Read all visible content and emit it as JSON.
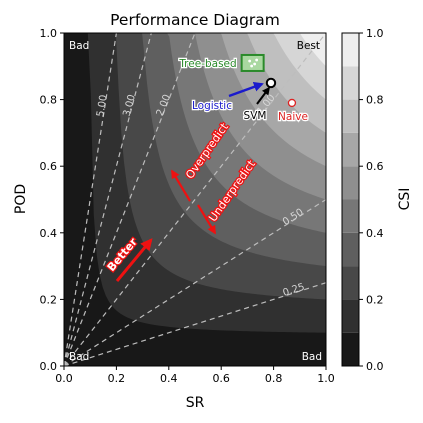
{
  "chart_data": {
    "type": "heatmap",
    "title": "Performance Diagram",
    "xlabel": "SR",
    "ylabel": "POD",
    "xlim": [
      0,
      1
    ],
    "ylim": [
      0,
      1
    ],
    "x_ticks": [
      "0.0",
      "0.2",
      "0.4",
      "0.6",
      "0.8",
      "1.0"
    ],
    "y_ticks": [
      "0.0",
      "0.2",
      "0.4",
      "0.6",
      "0.8",
      "1.0"
    ],
    "colorbar": {
      "label": "CSI",
      "levels": [
        0,
        0.1,
        0.2,
        0.3,
        0.4,
        0.5,
        0.6,
        0.7,
        0.8,
        0.9,
        1.0
      ],
      "ticks": [
        "0.0",
        "0.2",
        "0.4",
        "0.6",
        "0.8",
        "1.0"
      ],
      "colormap": "Greys_r"
    },
    "bias_lines": [
      {
        "value": 5.0,
        "label": "5.00"
      },
      {
        "value": 3.0,
        "label": "3.00"
      },
      {
        "value": 2.0,
        "label": "2.00"
      },
      {
        "value": 1.0,
        "label": "1.00"
      },
      {
        "value": 0.5,
        "label": "0.50"
      },
      {
        "value": 0.25,
        "label": "0.25"
      }
    ],
    "corner_labels": {
      "top_left": "Bad",
      "top_right": "Best",
      "bottom_left": "Bad",
      "bottom_right": "Bad"
    },
    "models": [
      {
        "name": "SVM",
        "sr": 0.79,
        "pod": 0.85,
        "color": "#000000",
        "marker": "open-circle"
      },
      {
        "name": "Naive",
        "sr": 0.87,
        "pod": 0.79,
        "color": "#dd2222",
        "marker": "open-circle"
      },
      {
        "name": "Tree-based",
        "sr": 0.72,
        "pod": 0.91,
        "color": "#2a8a2a",
        "marker": "box"
      }
    ],
    "model_labels": {
      "svm": "SVM",
      "naive": "Naive",
      "tree": "Tree-based",
      "logistic": "Logistic"
    },
    "annotations": {
      "better": "Better",
      "overpredict": "Overpredict",
      "underpredict": "Underpredict"
    },
    "colors": {
      "arrow_red": "#ee1111",
      "logistic_blue": "#1a1acc",
      "tree_green": "#2a8a2a",
      "naive_red": "#dd2222"
    }
  }
}
